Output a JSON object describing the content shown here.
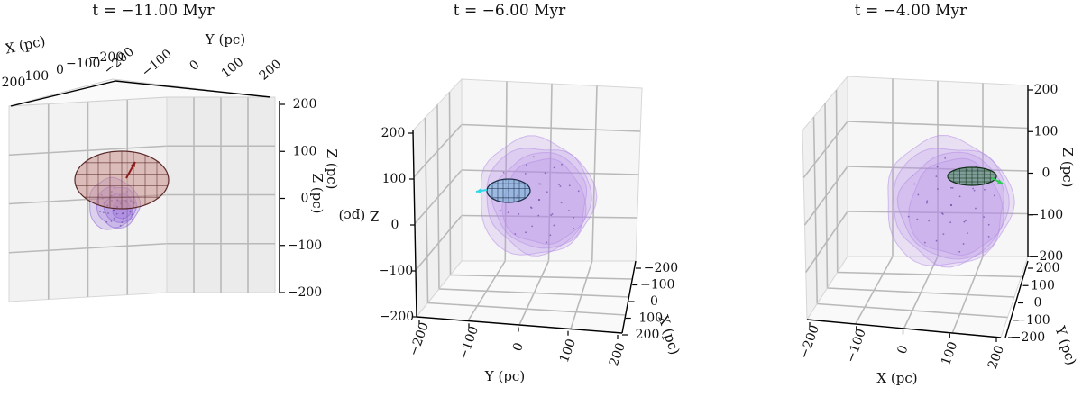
{
  "chart_data": [
    {
      "type": "scatter",
      "title": "t = −11.00 Myr",
      "xlabel": "X (pc)",
      "ylabel": "Y (pc)",
      "zlabel": "Z (pc)",
      "xlim": [
        -200,
        200
      ],
      "ylim": [
        -200,
        200
      ],
      "zlim": [
        -200,
        200
      ],
      "x_ticks": [
        "200",
        "100",
        "0",
        "−100",
        "−200"
      ],
      "y_ticks": [
        "−200",
        "−100",
        "0",
        "100",
        "200"
      ],
      "z_ticks": [
        "200",
        "100",
        "0",
        "−100",
        "−200"
      ],
      "grid": true,
      "series": [
        {
          "kind": "surface",
          "shape": "ellipsoid",
          "color": "#c98f8a"
        },
        {
          "kind": "surface",
          "shape": "shell",
          "color": "#8a5cd6"
        },
        {
          "kind": "vector",
          "color": "#8b1a1a"
        }
      ]
    },
    {
      "type": "scatter",
      "title": "t = −6.00 Myr",
      "xlabel": "X (pc)",
      "ylabel": "Y (pc)",
      "zlabel": "Z (pc)",
      "xlim": [
        -200,
        200
      ],
      "ylim": [
        -200,
        200
      ],
      "zlim": [
        -200,
        200
      ],
      "x_ticks": [
        "−200",
        "−100",
        "0",
        "100",
        "200"
      ],
      "y_ticks": [
        "−200",
        "−100",
        "0",
        "100",
        "200"
      ],
      "z_ticks": [
        "200",
        "100",
        "0",
        "−100",
        "−200"
      ],
      "grid": true,
      "series": [
        {
          "kind": "surface",
          "shape": "shell",
          "color": "#b48ee6"
        },
        {
          "kind": "surface",
          "shape": "ellipsoid",
          "color": "#6fb8d8"
        },
        {
          "kind": "vector",
          "color": "#33d6e6"
        }
      ]
    },
    {
      "type": "scatter",
      "title": "t = −4.00 Myr",
      "xlabel": "X (pc)",
      "ylabel": "Y (pc)",
      "zlabel": "Z (pc)",
      "xlim": [
        -200,
        200
      ],
      "ylim": [
        -200,
        200
      ],
      "zlim": [
        -200,
        200
      ],
      "x_ticks": [
        "−200",
        "−100",
        "0",
        "100",
        "200"
      ],
      "y_ticks": [
        "200",
        "100",
        "0",
        "−100",
        "−200"
      ],
      "z_ticks": [
        "200",
        "100",
        "0",
        "−100",
        "−200"
      ],
      "grid": true,
      "series": [
        {
          "kind": "surface",
          "shape": "shell",
          "color": "#b48ee6"
        },
        {
          "kind": "surface",
          "shape": "ellipsoid",
          "color": "#3f8a55"
        },
        {
          "kind": "vector",
          "color": "#2ecc55"
        }
      ]
    }
  ]
}
